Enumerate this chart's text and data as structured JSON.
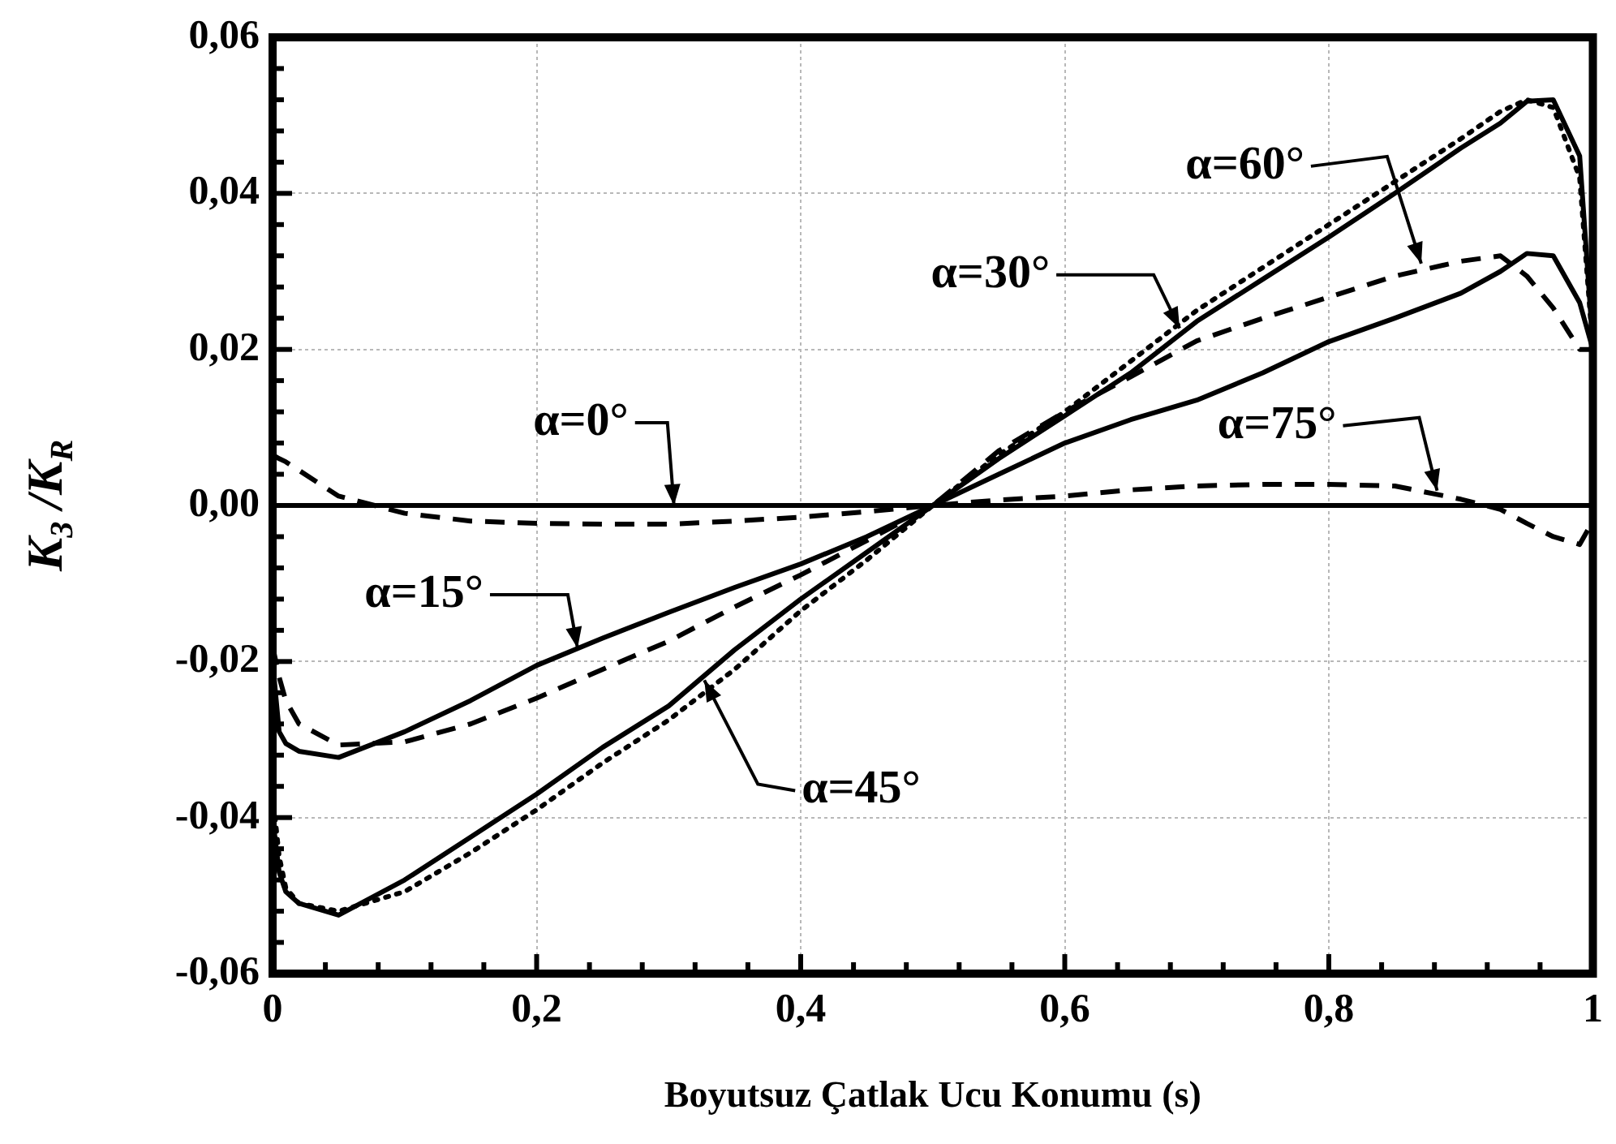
{
  "chart_data": {
    "type": "line",
    "xlabel": "Boyutsuz Çatlak Ucu Konumu (s)",
    "ylabel": "K$_{3}$ /K$_{R}$",
    "x": [
      0,
      0.005,
      0.01,
      0.02,
      0.05,
      0.1,
      0.15,
      0.2,
      0.25,
      0.3,
      0.35,
      0.4,
      0.45,
      0.5,
      0.55,
      0.6,
      0.65,
      0.7,
      0.75,
      0.8,
      0.85,
      0.9,
      0.93,
      0.95,
      0.97,
      0.99,
      1
    ],
    "series": [
      {
        "color": "#000000",
        "line_style": "solid",
        "values": [
          0,
          0,
          0,
          0,
          0,
          0,
          0,
          0,
          0,
          0,
          0,
          0,
          0,
          0,
          0,
          0,
          0,
          0,
          0,
          0,
          0,
          0,
          0,
          0,
          0,
          0,
          0
        ]
      },
      {
        "color": "#000000",
        "line_style": "solid",
        "values": [
          -0.02,
          -0.029,
          -0.0305,
          -0.0315,
          -0.0323,
          -0.029,
          -0.025,
          -0.0205,
          -0.017,
          -0.0137,
          -0.0105,
          -0.0075,
          -0.004,
          0,
          0.004,
          0.008,
          0.011,
          0.0135,
          0.017,
          0.021,
          0.024,
          0.0272,
          0.03,
          0.0323,
          0.032,
          0.026,
          0.02
        ]
      },
      {
        "color": "#000000",
        "line_style": "solid",
        "values": [
          -0.04,
          -0.047,
          -0.0495,
          -0.051,
          -0.0525,
          -0.048,
          -0.0425,
          -0.037,
          -0.031,
          -0.0257,
          -0.0185,
          -0.012,
          -0.006,
          0,
          0.006,
          0.0115,
          0.017,
          0.0236,
          0.029,
          0.0344,
          0.04,
          0.0458,
          0.049,
          0.0518,
          0.052,
          0.0448,
          0.0205
        ]
      },
      {
        "color": "#000000",
        "line_style": "dotted",
        "values": [
          -0.037,
          -0.045,
          -0.049,
          -0.051,
          -0.052,
          -0.0495,
          -0.0445,
          -0.039,
          -0.033,
          -0.0275,
          -0.021,
          -0.0135,
          -0.007,
          0,
          0.0065,
          0.012,
          0.0185,
          0.025,
          0.0305,
          0.036,
          0.0415,
          0.047,
          0.0505,
          0.052,
          0.051,
          0.042,
          0.02
        ]
      },
      {
        "color": "#000000",
        "line_style": "dashed",
        "values": [
          -0.018,
          -0.022,
          -0.025,
          -0.028,
          -0.0307,
          -0.0303,
          -0.028,
          -0.0247,
          -0.021,
          -0.0174,
          -0.013,
          -0.0089,
          -0.0045,
          0,
          0.007,
          0.012,
          0.0165,
          0.0211,
          0.024,
          0.0267,
          0.0294,
          0.0313,
          0.032,
          0.0294,
          0.0253,
          0.02,
          0.02
        ]
      },
      {
        "color": "#000000",
        "line_style": "dashed",
        "values": [
          0.0065,
          0.006,
          0.0056,
          0.0045,
          0.0012,
          -0.001,
          -0.002,
          -0.0023,
          -0.0024,
          -0.0024,
          -0.002,
          -0.0015,
          -0.0008,
          0,
          0.0007,
          0.0012,
          0.002,
          0.0025,
          0.0027,
          0.0027,
          0.0025,
          0.0008,
          -0.0005,
          -0.0023,
          -0.004,
          -0.005,
          -0.002
        ]
      }
    ],
    "annotations": [
      {
        "text": "α=0°",
        "x": 0.304,
        "y": 0
      },
      {
        "text": "α=15°",
        "x": 0.231,
        "y": -0.0183
      },
      {
        "text": "α=30°",
        "x": 0.687,
        "y": 0.0227
      },
      {
        "text": "α=45°",
        "x": 0.327,
        "y": -0.0224
      },
      {
        "text": "α=60°",
        "x": 0.87,
        "y": 0.031
      },
      {
        "text": "α=75°",
        "x": 0.882,
        "y": 0.0019
      }
    ],
    "xlim": [
      0,
      1
    ],
    "xticks": [
      0,
      {
        "value": 0.04,
        "label": null
      },
      {
        "value": 0.08,
        "label": null
      },
      {
        "value": 0.12,
        "label": null
      },
      {
        "value": 0.16,
        "label": null
      },
      {
        "value": 0.2,
        "label": "0,2"
      },
      {
        "value": 0.24,
        "label": null
      },
      {
        "value": 0.28,
        "label": null
      },
      {
        "value": 0.32,
        "label": null
      },
      {
        "value": 0.36,
        "label": null
      },
      {
        "value": 0.4,
        "label": "0,4"
      },
      {
        "value": 0.44,
        "label": null
      },
      {
        "value": 0.48,
        "label": null
      },
      {
        "value": 0.52,
        "label": null
      },
      {
        "value": 0.56,
        "label": null
      },
      {
        "value": 0.6,
        "label": "0,6"
      },
      {
        "value": 0.64,
        "label": null
      },
      {
        "value": 0.68,
        "label": null
      },
      {
        "value": 0.72,
        "label": null
      },
      {
        "value": 0.76,
        "label": null
      },
      {
        "value": 0.8,
        "label": "0,8"
      },
      {
        "value": 0.84,
        "label": null
      },
      {
        "value": 0.88,
        "label": null
      },
      {
        "value": 0.92,
        "label": null
      },
      {
        "value": 0.96,
        "label": null
      },
      1
    ],
    "ylim": [
      -0.06,
      0.06
    ],
    "yticks": [
      {
        "value": -0.06,
        "label": "-0,06"
      },
      {
        "value": -0.056,
        "label": null
      },
      {
        "value": -0.052,
        "label": null
      },
      {
        "value": -0.048,
        "label": null
      },
      {
        "value": -0.044,
        "label": null
      },
      {
        "value": -0.04,
        "label": "-0,04"
      },
      {
        "value": -0.036,
        "label": null
      },
      {
        "value": -0.032,
        "label": null
      },
      {
        "value": -0.028,
        "label": null
      },
      {
        "value": -0.024,
        "label": null
      },
      {
        "value": -0.02,
        "label": "-0,02"
      },
      {
        "value": -0.016,
        "label": null
      },
      {
        "value": -0.012,
        "label": null
      },
      {
        "value": -0.008,
        "label": null
      },
      {
        "value": -0.004,
        "label": null
      },
      {
        "value": 0,
        "label": "0,00"
      },
      {
        "value": 0.004,
        "label": null
      },
      {
        "value": 0.008,
        "label": null
      },
      {
        "value": 0.012,
        "label": null
      },
      {
        "value": 0.016,
        "label": null
      },
      {
        "value": 0.02,
        "label": "0,02"
      },
      {
        "value": 0.024,
        "label": null
      },
      {
        "value": 0.028,
        "label": null
      },
      {
        "value": 0.032,
        "label": null
      },
      {
        "value": 0.036,
        "label": null
      },
      {
        "value": 0.04,
        "label": "0,04"
      },
      {
        "value": 0.044,
        "label": null
      },
      {
        "value": 0.048,
        "label": null
      },
      {
        "value": 0.052,
        "label": null
      },
      {
        "value": 0.056,
        "label": null
      },
      {
        "value": 0.06,
        "label": "0,06"
      }
    ],
    "grid": true,
    "legend": false,
    "marker": "none"
  }
}
